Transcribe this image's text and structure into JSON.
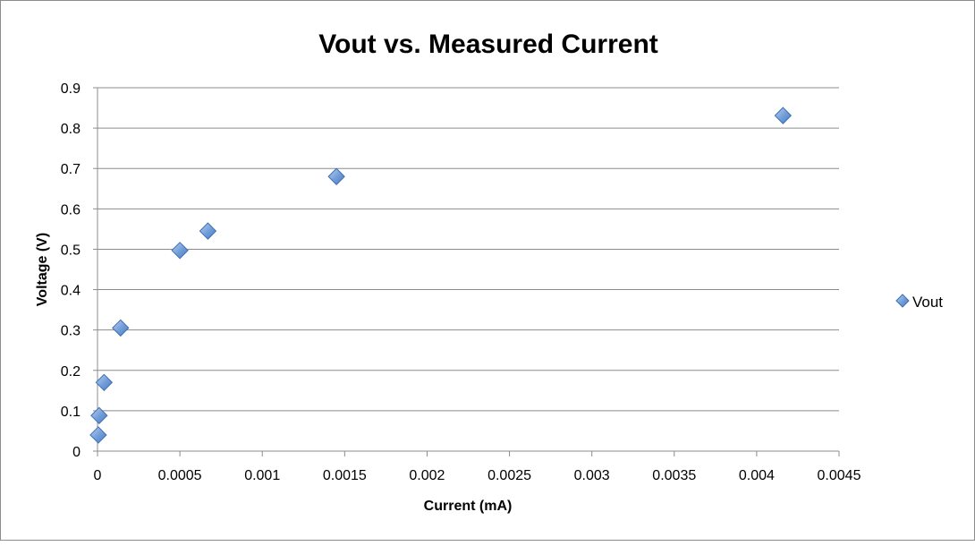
{
  "chart_data": {
    "type": "scatter",
    "title": "Vout vs. Measured Current",
    "xlabel": "Current (mA)",
    "ylabel": "Voltage (V)",
    "xlim": [
      0,
      0.0045
    ],
    "ylim": [
      0,
      0.9
    ],
    "x_ticks": [
      "0",
      "0.0005",
      "0.001",
      "0.0015",
      "0.002",
      "0.0025",
      "0.003",
      "0.0035",
      "0.004",
      "0.0045"
    ],
    "y_ticks": [
      "0",
      "0.1",
      "0.2",
      "0.3",
      "0.4",
      "0.5",
      "0.6",
      "0.7",
      "0.8",
      "0.9"
    ],
    "grid": "horizontal",
    "legend_position": "right",
    "series": [
      {
        "name": "Vout",
        "marker": "diamond",
        "color": "#6f9bd8",
        "edge_color": "#3f6fb0",
        "points": [
          {
            "x": 5e-06,
            "y": 0.04
          },
          {
            "x": 1e-05,
            "y": 0.088
          },
          {
            "x": 4e-05,
            "y": 0.17
          },
          {
            "x": 0.00014,
            "y": 0.305
          },
          {
            "x": 0.0005,
            "y": 0.497
          },
          {
            "x": 0.00067,
            "y": 0.545
          },
          {
            "x": 0.00145,
            "y": 0.68
          },
          {
            "x": 0.00416,
            "y": 0.831
          }
        ]
      }
    ]
  }
}
